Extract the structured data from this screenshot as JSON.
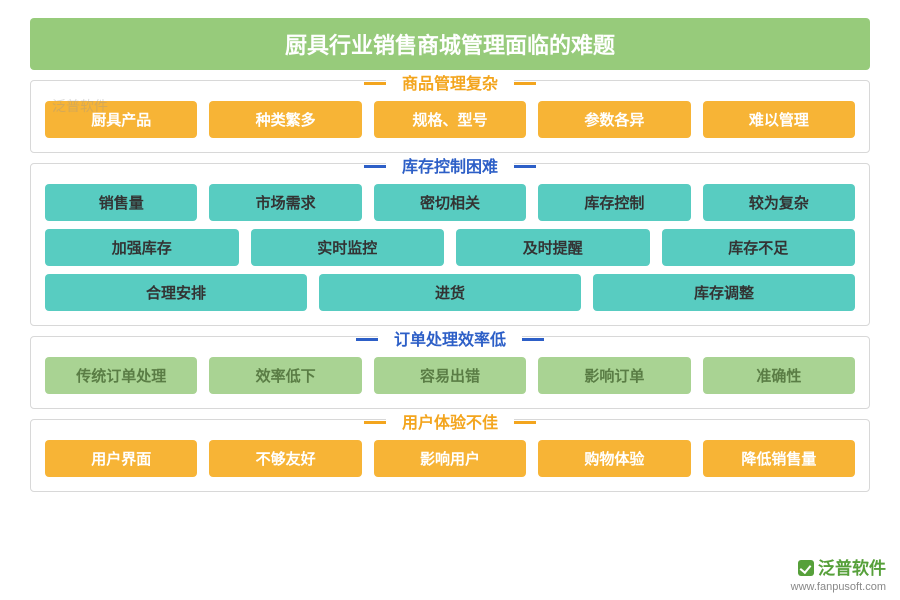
{
  "title": "厨具行业销售商城管理面临的难题",
  "sections": [
    {
      "title": "商品管理复杂",
      "title_class": "t-orange",
      "rows": [
        {
          "tag_class": "tag-orange",
          "items": [
            "厨具产品",
            "种类繁多",
            "规格、型号",
            "参数各异",
            "难以管理"
          ]
        }
      ]
    },
    {
      "title": "库存控制困难",
      "title_class": "t-blue",
      "rows": [
        {
          "tag_class": "tag-teal",
          "items": [
            "销售量",
            "市场需求",
            "密切相关",
            "库存控制",
            "较为复杂"
          ]
        },
        {
          "tag_class": "tag-teal",
          "items": [
            "加强库存",
            "实时监控",
            "及时提醒",
            "库存不足"
          ]
        },
        {
          "tag_class": "tag-teal",
          "items": [
            "合理安排",
            "进货",
            "库存调整"
          ]
        }
      ]
    },
    {
      "title": "订单处理效率低",
      "title_class": "t-blue",
      "rows": [
        {
          "tag_class": "tag-green",
          "items": [
            "传统订单处理",
            "效率低下",
            "容易出错",
            "影响订单",
            "准确性"
          ]
        }
      ]
    },
    {
      "title": "用户体验不佳",
      "title_class": "t-orange",
      "rows": [
        {
          "tag_class": "tag-orange",
          "items": [
            "用户界面",
            "不够友好",
            "影响用户",
            "购物体验",
            "降低销售量"
          ]
        }
      ]
    }
  ],
  "watermark_tl": "泛普软件",
  "watermark_br": {
    "brand": "泛普软件",
    "url": "www.fanpusoft.com"
  },
  "colors": {
    "title_bg": "#97cb7b",
    "orange": "#f7b436",
    "teal": "#58ccc1",
    "lightgreen": "#a9d393",
    "border": "#d8d8d8"
  }
}
